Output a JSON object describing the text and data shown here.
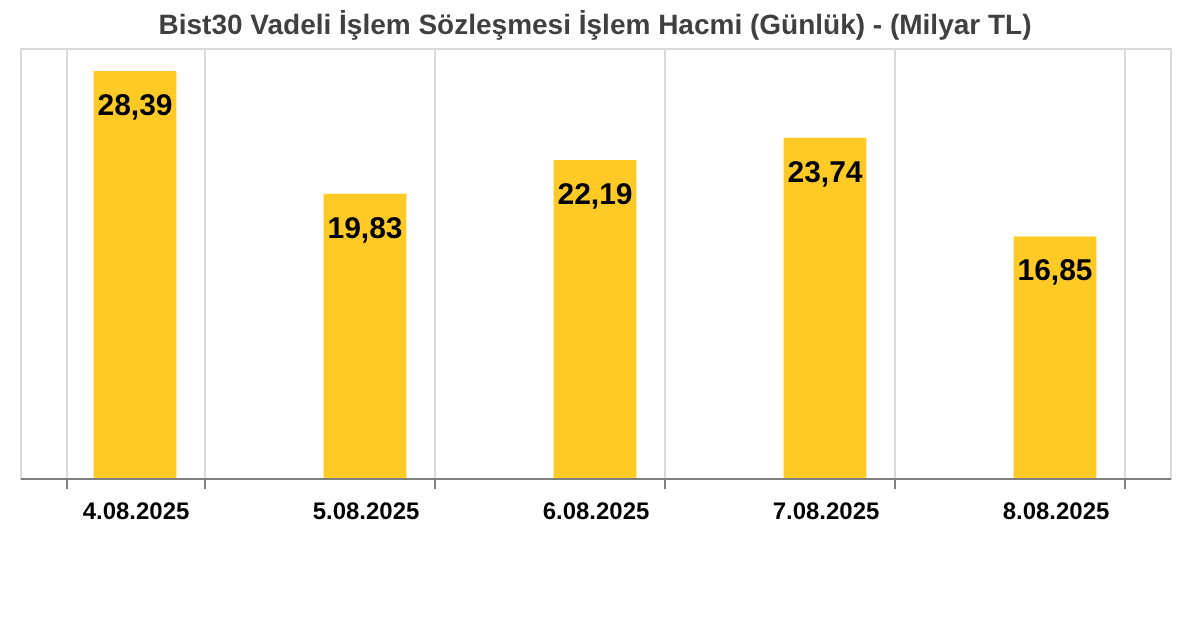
{
  "chart_data": {
    "type": "bar",
    "title": "Bist30 Vadeli İşlem Sözleşmesi İşlem Hacmi (Günlük) - (Milyar TL)",
    "categories": [
      "4.08.2025",
      "5.08.2025",
      "6.08.2025",
      "7.08.2025",
      "8.08.2025"
    ],
    "values": [
      28.39,
      19.83,
      22.19,
      23.74,
      16.85
    ],
    "value_labels": [
      "28,39",
      "19,83",
      "22,19",
      "23,74",
      "16,85"
    ],
    "color": "#ffc926",
    "grid": "x",
    "tick_labels": "x"
  }
}
